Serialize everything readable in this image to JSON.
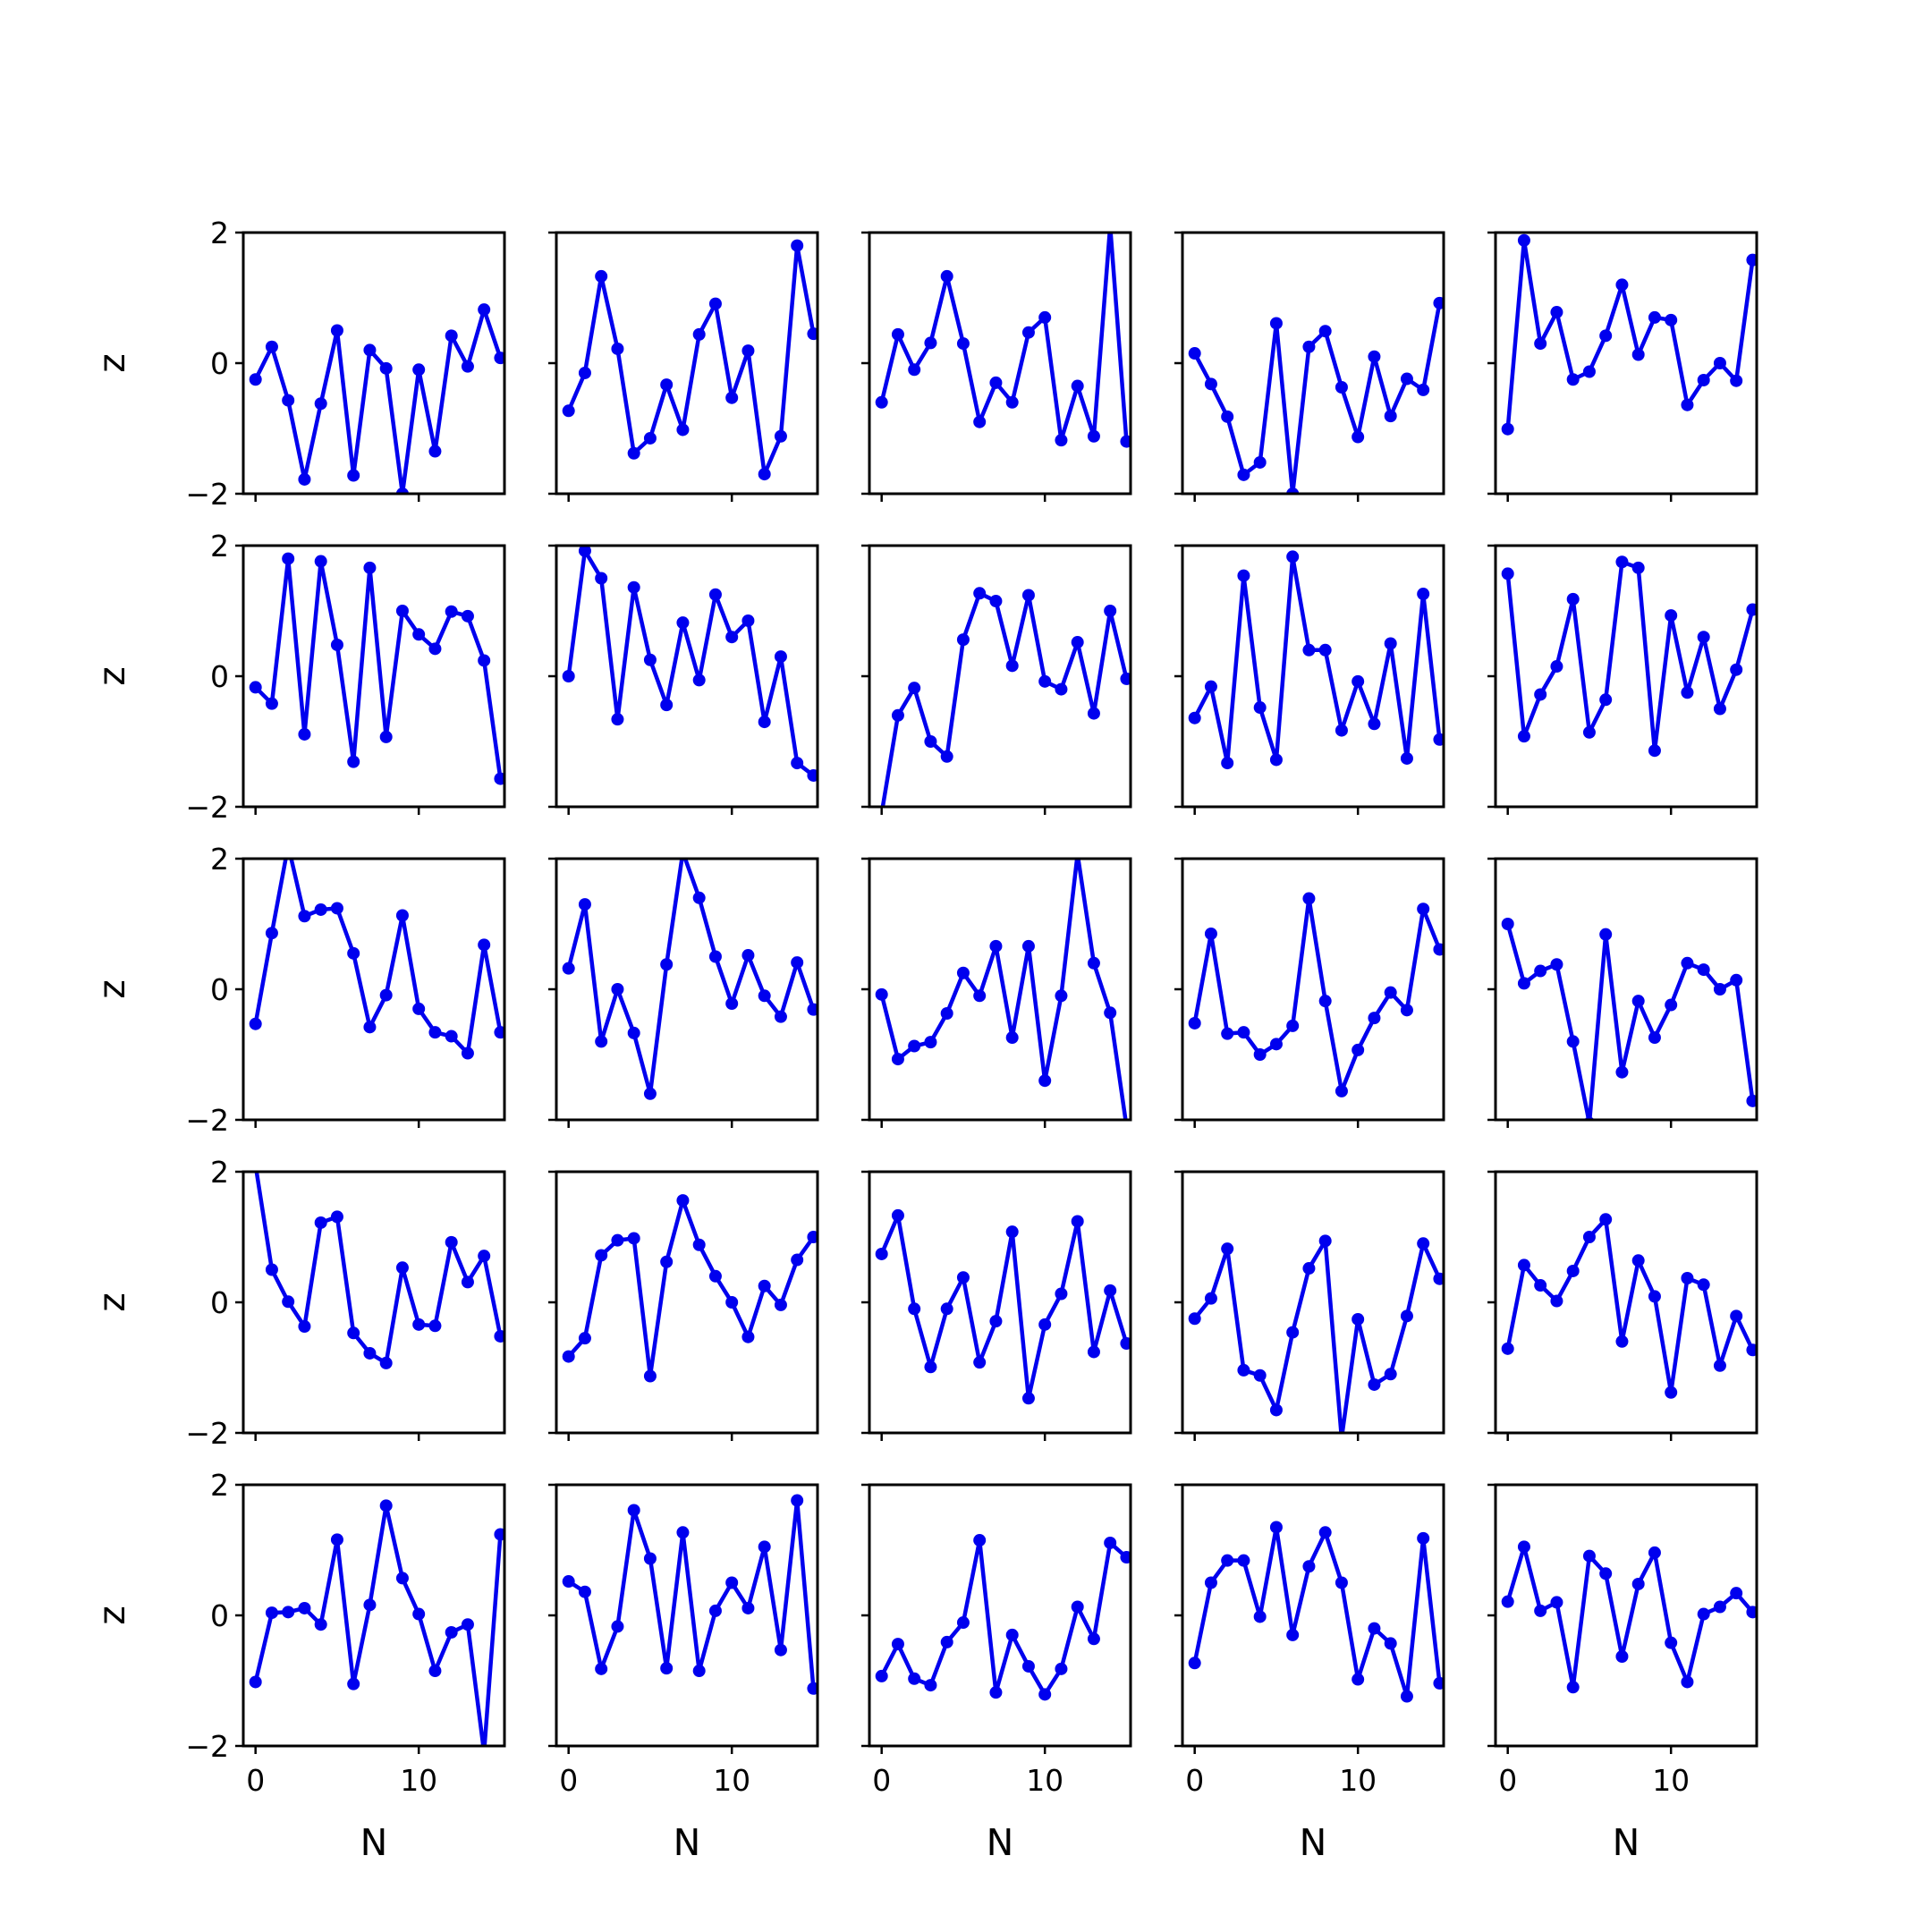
{
  "chart_data": {
    "type": "line",
    "layout": "5x5 grid of small multiples",
    "xlabel": "N",
    "ylabel": "z",
    "xlim": [
      -0.75,
      15.25
    ],
    "ylim": [
      -2,
      2
    ],
    "xticks": [
      0,
      10
    ],
    "xtick_labels": [
      "0",
      "10"
    ],
    "yticks": [
      -2,
      0,
      2
    ],
    "ytick_labels": [
      "−2",
      "0",
      "2"
    ],
    "x": [
      0,
      1,
      2,
      3,
      4,
      5,
      6,
      7,
      8,
      9,
      10,
      11,
      12,
      13,
      14,
      15
    ],
    "marker": "circle",
    "color": "#0000ee",
    "grid": false,
    "legend": false,
    "panels": [
      [
        -0.25,
        0.25,
        -0.57,
        -1.78,
        -0.62,
        0.5,
        -1.72,
        0.2,
        -0.08,
        -2.0,
        -0.1,
        -1.35,
        0.42,
        -0.05,
        0.82,
        0.08
      ],
      [
        -0.73,
        -0.15,
        1.33,
        0.22,
        -1.38,
        -1.15,
        -0.33,
        -1.02,
        0.44,
        0.91,
        -0.53,
        0.19,
        -1.7,
        -1.12,
        1.8,
        0.45
      ],
      [
        -0.6,
        0.44,
        -0.1,
        0.31,
        1.33,
        0.3,
        -0.9,
        -0.3,
        -0.6,
        0.47,
        0.7,
        -1.18,
        -0.35,
        -1.12,
        2.1,
        -1.2
      ],
      [
        0.15,
        -0.32,
        -0.82,
        -1.71,
        -1.52,
        0.61,
        -2.0,
        0.25,
        0.49,
        -0.37,
        -1.13,
        0.1,
        -0.81,
        -0.24,
        -0.41,
        0.92
      ],
      [
        -1.01,
        1.88,
        0.3,
        0.78,
        -0.25,
        -0.13,
        0.42,
        1.2,
        0.13,
        0.7,
        0.66,
        -0.64,
        -0.26,
        0.0,
        -0.27,
        1.58
      ],
      [
        -0.17,
        -0.42,
        1.8,
        -0.89,
        1.76,
        0.48,
        -1.31,
        1.66,
        -0.93,
        1.0,
        0.64,
        0.42,
        0.99,
        0.92,
        0.24,
        -1.57
      ],
      [
        0.0,
        1.92,
        1.5,
        -0.66,
        1.36,
        0.25,
        -0.44,
        0.82,
        -0.06,
        1.25,
        0.6,
        0.85,
        -0.7,
        0.3,
        -1.33,
        -1.52
      ],
      [
        -2.1,
        -0.6,
        -0.18,
        -1.0,
        -1.23,
        0.56,
        1.27,
        1.15,
        0.16,
        1.24,
        -0.08,
        -0.2,
        0.52,
        -0.57,
        1.0,
        -0.04
      ],
      [
        -0.64,
        -0.16,
        -1.33,
        1.54,
        -0.48,
        -1.28,
        1.83,
        0.4,
        0.4,
        -0.83,
        -0.08,
        -0.73,
        0.5,
        -1.26,
        1.26,
        -0.97
      ],
      [
        1.57,
        -0.92,
        -0.28,
        0.15,
        1.18,
        -0.86,
        -0.36,
        1.75,
        1.66,
        -1.14,
        0.93,
        -0.25,
        0.6,
        -0.5,
        0.1,
        1.02
      ],
      [
        -0.53,
        0.86,
        2.2,
        1.12,
        1.22,
        1.24,
        0.55,
        -0.58,
        -0.09,
        1.13,
        -0.3,
        -0.66,
        -0.72,
        -0.98,
        0.68,
        -0.66
      ],
      [
        0.32,
        1.3,
        -0.8,
        0.0,
        -0.67,
        -1.6,
        0.38,
        2.1,
        1.4,
        0.5,
        -0.22,
        0.52,
        -0.1,
        -0.42,
        0.41,
        -0.31
      ],
      [
        -0.08,
        -1.07,
        -0.87,
        -0.81,
        -0.37,
        0.25,
        -0.1,
        0.66,
        -0.74,
        0.66,
        -1.4,
        -0.1,
        2.07,
        0.4,
        -0.36,
        -2.1
      ],
      [
        -0.52,
        0.85,
        -0.68,
        -0.66,
        -1.0,
        -0.84,
        -0.56,
        1.39,
        -0.18,
        -1.56,
        -0.93,
        -0.44,
        -0.05,
        -0.32,
        1.23,
        0.61
      ],
      [
        1.0,
        0.09,
        0.28,
        0.38,
        -0.8,
        -2.05,
        0.84,
        -1.27,
        -0.18,
        -0.74,
        -0.24,
        0.4,
        0.3,
        0.0,
        0.14,
        -1.71
      ],
      [
        2.1,
        0.5,
        0.01,
        -0.37,
        1.22,
        1.31,
        -0.47,
        -0.78,
        -0.93,
        0.53,
        -0.34,
        -0.36,
        0.92,
        0.31,
        0.71,
        -0.52
      ],
      [
        -0.83,
        -0.55,
        0.72,
        0.95,
        0.98,
        -1.13,
        0.62,
        1.56,
        0.88,
        0.4,
        0.0,
        -0.53,
        0.25,
        -0.04,
        0.65,
        1.0
      ],
      [
        0.74,
        1.33,
        -0.1,
        -0.99,
        -0.1,
        0.38,
        -0.92,
        -0.29,
        1.08,
        -1.47,
        -0.34,
        0.13,
        1.24,
        -0.76,
        0.18,
        -0.63
      ],
      [
        -0.25,
        0.06,
        0.82,
        -1.04,
        -1.12,
        -1.65,
        -0.46,
        0.52,
        0.94,
        -2.08,
        -0.26,
        -1.26,
        -1.1,
        -0.21,
        0.9,
        0.36
      ],
      [
        -0.71,
        0.57,
        0.26,
        0.02,
        0.48,
        1.0,
        1.27,
        -0.6,
        0.64,
        0.09,
        -1.38,
        0.37,
        0.27,
        -0.97,
        -0.21,
        -0.73
      ],
      [
        -1.02,
        0.04,
        0.05,
        0.11,
        -0.14,
        1.16,
        -1.05,
        0.16,
        1.68,
        0.57,
        0.02,
        -0.85,
        -0.26,
        -0.14,
        -2.1,
        1.24
      ],
      [
        0.52,
        0.36,
        -0.82,
        -0.17,
        1.61,
        0.87,
        -0.81,
        1.27,
        -0.85,
        0.07,
        0.5,
        0.11,
        1.05,
        -0.53,
        1.76,
        -1.12
      ],
      [
        -0.93,
        -0.44,
        -0.97,
        -1.07,
        -0.41,
        -0.11,
        1.15,
        -1.18,
        -0.3,
        -0.78,
        -1.21,
        -0.82,
        0.13,
        -0.36,
        1.11,
        0.89
      ],
      [
        -0.73,
        0.5,
        0.84,
        0.84,
        -0.02,
        1.35,
        -0.3,
        0.75,
        1.27,
        0.5,
        -0.98,
        -0.2,
        -0.43,
        -1.24,
        1.18,
        -1.04
      ],
      [
        0.21,
        1.05,
        0.07,
        0.2,
        -1.1,
        0.91,
        0.64,
        -0.63,
        0.48,
        0.96,
        -0.42,
        -1.02,
        0.02,
        0.13,
        0.34,
        0.05
      ]
    ]
  }
}
